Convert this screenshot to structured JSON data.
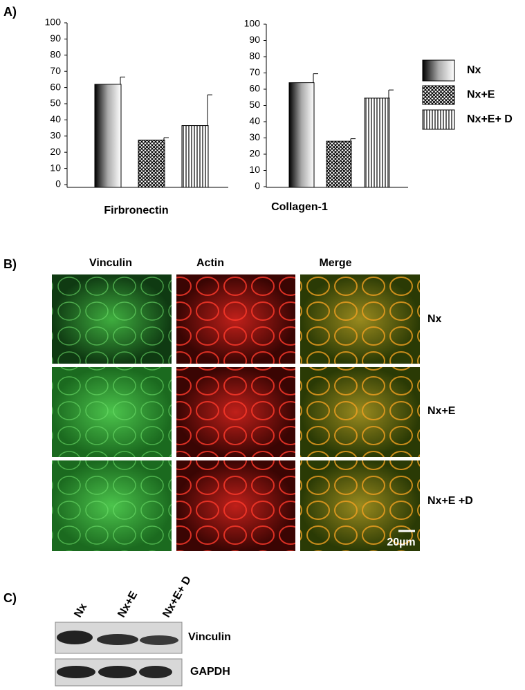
{
  "panel_labels": [
    "A)",
    "B)",
    "C)"
  ],
  "legend": {
    "items": [
      {
        "name": "Nx",
        "fill": "gradient"
      },
      {
        "name": "Nx+E",
        "fill": "crosshatch"
      },
      {
        "name": "Nx+E+ D",
        "fill": "vertical-lines"
      }
    ]
  },
  "chart_data": [
    {
      "type": "bar",
      "xlabel": "Firbronectin",
      "values": [
        62,
        27.5,
        36.5
      ],
      "errors": [
        4.5,
        1.5,
        19
      ],
      "ylim": [
        0,
        100
      ],
      "yticks": [
        0,
        10,
        20,
        30,
        40,
        50,
        60,
        70,
        80,
        90,
        100
      ]
    },
    {
      "type": "bar",
      "xlabel": "Collagen-1",
      "values": [
        64,
        28,
        54.5
      ],
      "errors": [
        5.5,
        1.5,
        5
      ],
      "ylim": [
        0,
        100
      ],
      "yticks": [
        0,
        10,
        20,
        30,
        40,
        50,
        60,
        70,
        80,
        90,
        100
      ]
    }
  ],
  "microscopy": {
    "columns": [
      "Vinculin",
      "Actin",
      "Merge"
    ],
    "rows": [
      "Nx",
      "Nx+E",
      "Nx+E +D"
    ],
    "scale_bar": "20µm"
  },
  "western_blot": {
    "lanes": [
      "Nx",
      "Nx+E",
      "Nx+E+ D"
    ],
    "bands": [
      "Vinculin",
      "GAPDH"
    ]
  }
}
